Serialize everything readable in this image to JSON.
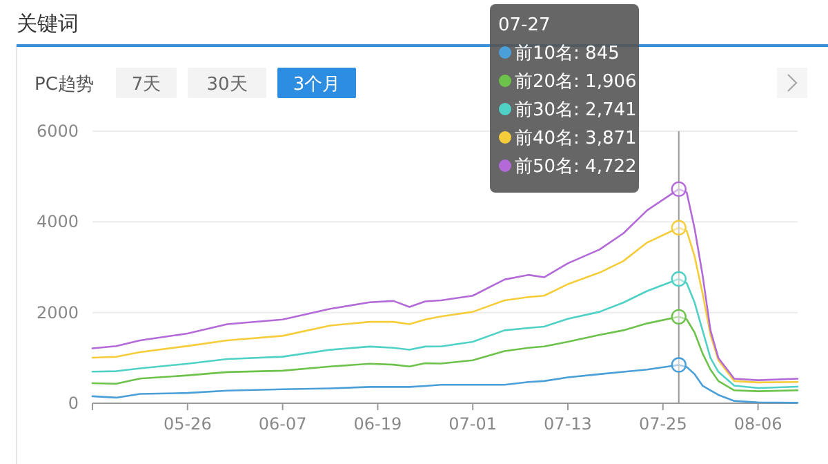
{
  "chart_data": {
    "type": "line",
    "title": "关键词",
    "subtitle": "PC趋势",
    "x": [
      "--05-14",
      "--05-17",
      "--05-20",
      "--05-26",
      "--05-31",
      "--06-07",
      "--06-13",
      "--06-18",
      "--06-21",
      "--06-23",
      "--06-25",
      "--06-27",
      "--07-01",
      "--07-05",
      "--07-08",
      "--07-10",
      "--07-13",
      "--07-17",
      "--07-20",
      "--07-23",
      "--07-27",
      "--07-28",
      "--07-29",
      "--07-30",
      "--07-31",
      "--08-01",
      "--08-03",
      "--08-06",
      "--08-11"
    ],
    "series": [
      {
        "name": "前10名: 845",
        "color": "#4a9fd8",
        "values": [
          154,
          123,
          205,
          226,
          277,
          308,
          328,
          359,
          359,
          359,
          380,
          407,
          407,
          407,
          468,
          489,
          570,
          641,
          692,
          743,
          845,
          800,
          641,
          387,
          285,
          183,
          51,
          20,
          10
        ]
      },
      {
        "name": "前20名: 1,906",
        "color": "#6cc24a",
        "values": [
          441,
          431,
          544,
          615,
          687,
          718,
          810,
          872,
          851,
          810,
          882,
          875,
          947,
          1150,
          1222,
          1252,
          1354,
          1507,
          1608,
          1761,
          1906,
          1850,
          1558,
          1099,
          743,
          489,
          285,
          265,
          285
        ]
      },
      {
        "name": "前30名: 2,741",
        "color": "#4fd1c5",
        "values": [
          697,
          707,
          769,
          872,
          974,
          1026,
          1179,
          1251,
          1221,
          1179,
          1251,
          1252,
          1354,
          1608,
          1659,
          1690,
          1863,
          2016,
          2219,
          2474,
          2741,
          2650,
          2219,
          1608,
          998,
          692,
          387,
          336,
          366
        ]
      },
      {
        "name": "前40名: 3,871",
        "color": "#f5cd3a",
        "values": [
          1005,
          1025,
          1128,
          1262,
          1385,
          1487,
          1713,
          1795,
          1795,
          1744,
          1846,
          1914,
          2016,
          2270,
          2341,
          2372,
          2626,
          2881,
          3135,
          3543,
          3871,
          3800,
          3237,
          2423,
          1507,
          947,
          489,
          458,
          468
        ]
      },
      {
        "name": "前50名: 4,722",
        "color": "#b36ad8",
        "values": [
          1210,
          1260,
          1385,
          1538,
          1744,
          1846,
          2082,
          2226,
          2256,
          2123,
          2246,
          2270,
          2372,
          2728,
          2830,
          2779,
          3085,
          3390,
          3746,
          4255,
          4722,
          4650,
          3848,
          2830,
          1608,
          998,
          540,
          509,
          540
        ]
      }
    ],
    "xlim": [
      "--05-14",
      "--08-11"
    ],
    "xticks": [
      {
        "value": "--05-14",
        "label": null
      },
      {
        "value": "--05-26",
        "label": "05-26"
      },
      {
        "value": "--06-07",
        "label": "06-07"
      },
      {
        "value": "--06-19",
        "label": "06-19"
      },
      {
        "value": "--07-01",
        "label": "07-01"
      },
      {
        "value": "--07-13",
        "label": "07-13"
      },
      {
        "value": "--07-25",
        "label": "07-25"
      },
      {
        "value": "--08-06",
        "label": "08-06"
      }
    ],
    "ylim": [
      0,
      6000
    ],
    "yticks": [
      0,
      2000,
      4000,
      6000
    ],
    "grid": "y",
    "legend": "top",
    "legend_title": "07-27",
    "marker": "none",
    "line_style": "solid",
    "ref_lines": [
      {
        "axis": "x",
        "value": "--07-27",
        "color": "#999999"
      }
    ],
    "annotations": [
      "7天",
      "30天",
      "3个月"
    ]
  }
}
